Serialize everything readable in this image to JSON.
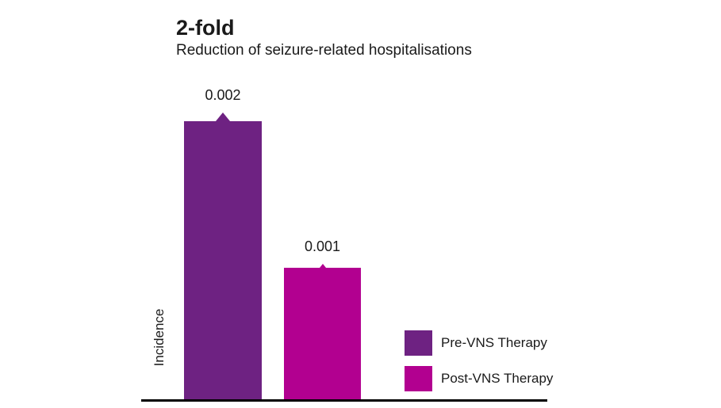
{
  "title": "2-fold",
  "subtitle": "Reduction of seizure-related hospitalisations",
  "colors": {
    "pre_vns": "#6E2282",
    "post_vns": "#B20090",
    "text": "#1A1A1A",
    "axis": "#000000",
    "background": "#FFFFFF"
  },
  "chart_data": {
    "type": "bar",
    "title": "2-fold",
    "subtitle": "Reduction of seizure-related hospitalisations",
    "xlabel": "",
    "ylabel": "Incidence",
    "categories": [
      "Pre-VNS Therapy",
      "Post-VNS Therapy"
    ],
    "values": [
      0.002,
      0.001
    ],
    "value_labels": [
      "0.002",
      "0.001"
    ],
    "bar_colors": [
      "#6E2282",
      "#B20090"
    ],
    "ylim": [
      0,
      0.0022
    ],
    "grid": false,
    "y_ticks_visible": false,
    "x_ticks_visible": false,
    "legend_position": "right-bottom",
    "legend": [
      {
        "label": "Pre-VNS Therapy",
        "color": "#6E2282"
      },
      {
        "label": "Post-VNS Therapy",
        "color": "#B20090"
      }
    ]
  }
}
